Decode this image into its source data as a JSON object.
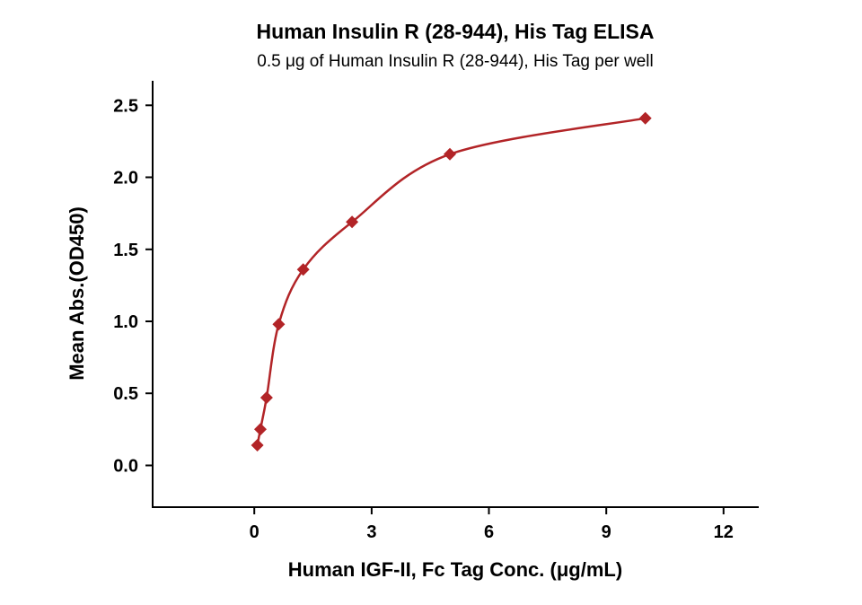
{
  "chart_data": {
    "type": "scatter",
    "title": "Human Insulin R (28-944), His Tag ELISA",
    "subtitle": "0.5 μg of Human Insulin R (28-944), His Tag per well",
    "xlabel": "Human IGF-II, Fc Tag Conc. (μg/mL)",
    "ylabel": "Mean Abs.(OD450)",
    "x": [
      0.078,
      0.156,
      0.313,
      0.625,
      1.25,
      2.5,
      5,
      10
    ],
    "y": [
      0.14,
      0.25,
      0.47,
      0.98,
      1.36,
      1.69,
      2.16,
      2.41
    ],
    "xticks": [
      0,
      3,
      6,
      9,
      12
    ],
    "yticks": [
      "0.0",
      "0.5",
      "1.0",
      "1.5",
      "2.0",
      "2.5"
    ],
    "xlim": [
      -2.6,
      12.9
    ],
    "ylim": [
      -0.29,
      2.67
    ],
    "marker": "diamond",
    "line": "smooth-fit-curve",
    "color": "#B22427",
    "axis_color": "#000000",
    "grid": false,
    "legend": "none"
  }
}
